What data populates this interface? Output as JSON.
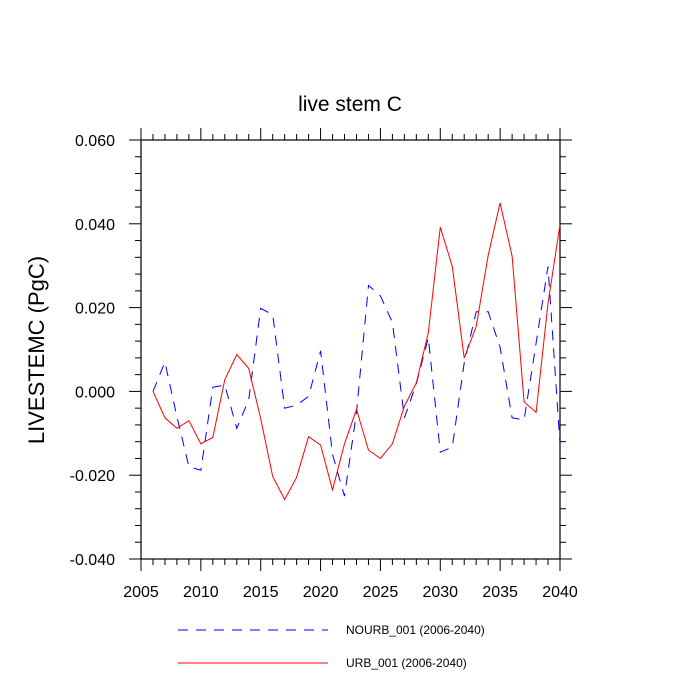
{
  "chart_data": {
    "type": "line",
    "title": "live stem C",
    "xlabel": "",
    "ylabel": "LIVESTEMC  (PgC)",
    "xlim": [
      2005,
      2040
    ],
    "ylim": [
      -0.04,
      0.06
    ],
    "x_ticks": [
      2005,
      2010,
      2015,
      2020,
      2025,
      2030,
      2035,
      2040
    ],
    "x_tick_labels": [
      "2005",
      "2010",
      "2015",
      "2020",
      "2025",
      "2030",
      "2035",
      "2040"
    ],
    "y_ticks": [
      -0.04,
      -0.02,
      0.0,
      0.02,
      0.04,
      0.06
    ],
    "y_tick_labels": [
      "-0.040",
      "-0.020",
      "0.000",
      "0.020",
      "0.040",
      "0.060"
    ],
    "legend_position": "bottom",
    "x": [
      2006,
      2007,
      2008,
      2009,
      2010,
      2011,
      2012,
      2013,
      2014,
      2015,
      2016,
      2017,
      2018,
      2019,
      2020,
      2021,
      2022,
      2023,
      2024,
      2025,
      2026,
      2027,
      2028,
      2029,
      2030,
      2031,
      2032,
      2033,
      2034,
      2035,
      2036,
      2037,
      2038,
      2039,
      2040
    ],
    "series": [
      {
        "name": "NOURB_001 (2006-2040)",
        "color": "#0000ff",
        "dash": "dashed",
        "values": [
          0.0,
          0.007,
          -0.006,
          -0.018,
          -0.0188,
          0.001,
          0.0015,
          -0.0088,
          -0.002,
          0.0198,
          0.0183,
          -0.004,
          -0.0033,
          -0.0012,
          0.0097,
          -0.015,
          -0.025,
          -0.005,
          0.0253,
          0.0228,
          0.0165,
          -0.0063,
          0.0018,
          0.0128,
          -0.0145,
          -0.0133,
          0.0068,
          0.019,
          0.019,
          0.0105,
          -0.0063,
          -0.0068,
          0.0115,
          0.0298,
          -0.0125
        ]
      },
      {
        "name": "URB_001 (2006-2040)",
        "color": "#ff0000",
        "dash": "solid",
        "values": [
          0.0,
          -0.0063,
          -0.0088,
          -0.007,
          -0.0125,
          -0.011,
          0.0028,
          0.0088,
          0.0055,
          -0.0065,
          -0.0203,
          -0.0258,
          -0.0205,
          -0.0108,
          -0.0128,
          -0.0235,
          -0.0125,
          -0.0043,
          -0.014,
          -0.016,
          -0.0125,
          -0.0035,
          0.002,
          0.014,
          0.0392,
          0.0298,
          0.008,
          0.0155,
          0.0325,
          0.045,
          0.0323,
          -0.0025,
          -0.005,
          0.021,
          0.0398
        ]
      }
    ]
  }
}
